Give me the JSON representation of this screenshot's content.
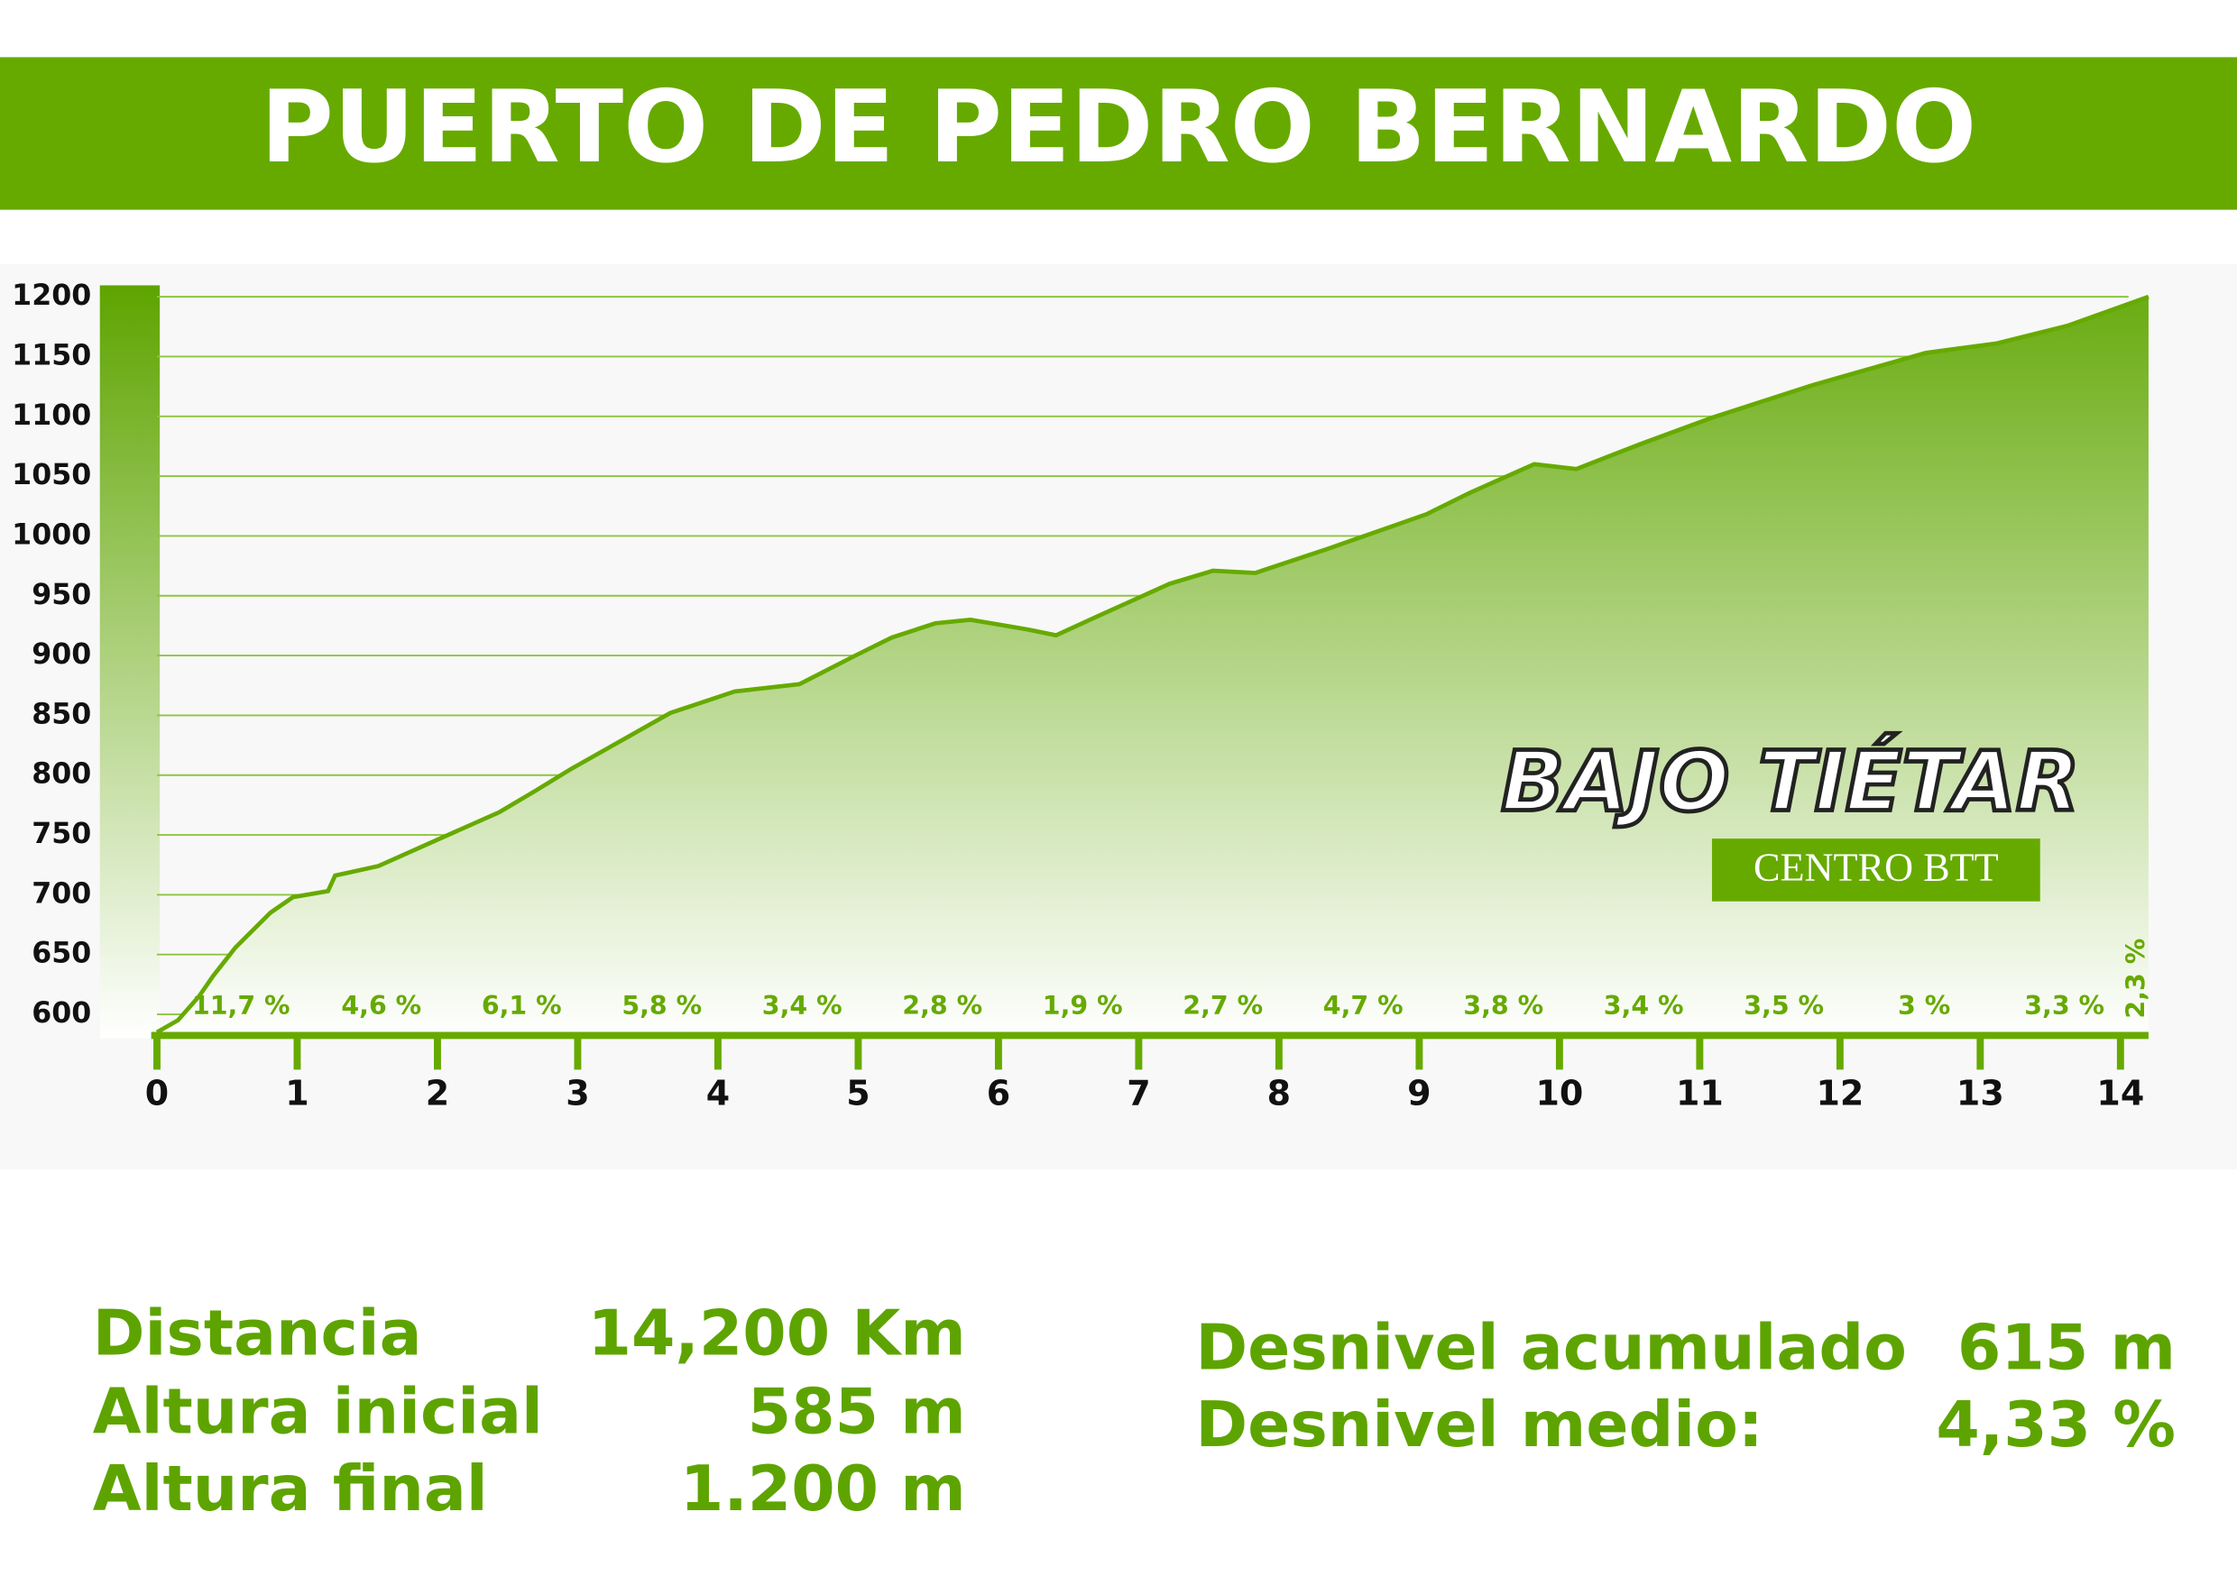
{
  "chart_data": {
    "type": "area",
    "title": "PUERTO DE PEDRO BERNARDO",
    "color": "#66aa00",
    "x": [
      0,
      0.15,
      0.3,
      0.4,
      0.56,
      0.81,
      0.97,
      1.22,
      1.27,
      1.58,
      1.98,
      2.44,
      2.7,
      2.95,
      3.66,
      4.12,
      4.58,
      4.98,
      5.24,
      5.55,
      5.8,
      6.2,
      6.41,
      6.71,
      7.22,
      7.53,
      7.83,
      8.34,
      9.05,
      9.36,
      9.82,
      10.12,
      10.58,
      11.09,
      11.8,
      12.61,
      13.12,
      13.63,
      14.2
    ],
    "values": [
      585,
      595,
      615,
      632,
      656,
      685,
      698,
      703,
      716,
      724,
      745,
      769,
      787,
      805,
      852,
      870,
      876,
      900,
      915,
      927,
      930,
      922,
      917,
      933,
      960,
      971,
      969,
      989,
      1018,
      1036,
      1060,
      1056,
      1077,
      1099,
      1126,
      1153,
      1161,
      1176,
      1200
    ],
    "xlim": [
      0,
      14.2
    ],
    "ylim": [
      580,
      1200
    ],
    "xticks": [
      0,
      1,
      2,
      3,
      4,
      5,
      6,
      7,
      8,
      9,
      10,
      11,
      12,
      13,
      14
    ],
    "yticks": [
      600,
      650,
      700,
      750,
      800,
      850,
      900,
      950,
      1000,
      1050,
      1100,
      1150,
      1200
    ],
    "grid": true,
    "annotations": [
      "11,7 %",
      "4,6 %",
      "6,1 %",
      "5,8 %",
      "3,4 %",
      "2,8 %",
      "1,9 %",
      "2,7 %",
      "4,7 %",
      "3,8 %",
      "3,4 %",
      "3,5 %",
      "3 %",
      "3,3 %",
      "2,3 %"
    ]
  },
  "logo": {
    "title": "BAJO TIÉTAR",
    "subtitle": "CENTRO BTT"
  },
  "stats": [
    {
      "label": "Distancia",
      "value": "14,200 Km"
    },
    {
      "label": "Altura inicial",
      "value": "585 m"
    },
    {
      "label": "Altura final",
      "value": "1.200 m"
    },
    {
      "label": "Desnivel acumulado",
      "value": "615 m"
    },
    {
      "label": "Desnivel medio:",
      "value": "4,33 %"
    }
  ]
}
